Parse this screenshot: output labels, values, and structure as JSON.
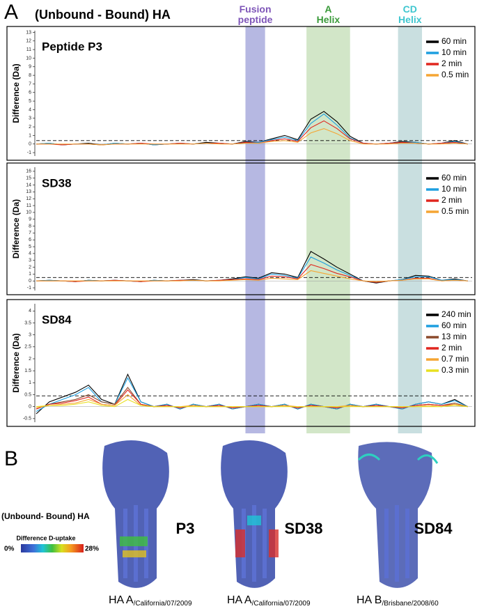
{
  "panel_a": {
    "label": "A",
    "title": "(Unbound - Bound) HA"
  },
  "regions": [
    {
      "label": "Fusion peptide",
      "start": 48,
      "end": 52.5,
      "color": "#b6b8e2",
      "text_color": "#7e55b8"
    },
    {
      "label": "A Helix",
      "start": 62,
      "end": 72,
      "color": "#d2e6c8",
      "text_color": "#3a9a3a"
    },
    {
      "label": "CD Helix",
      "start": 83,
      "end": 88.5,
      "color": "#c9dfe0",
      "text_color": "#3ec6cf"
    }
  ],
  "chart_data": [
    {
      "type": "line",
      "title": "Peptide P3",
      "y_label": "Difference (Da)",
      "x": [
        0,
        3,
        6,
        9,
        12,
        15,
        18,
        21,
        24,
        27,
        30,
        33,
        36,
        39,
        42,
        45,
        48,
        51,
        54,
        57,
        60,
        63,
        66,
        69,
        72,
        75,
        78,
        81,
        84,
        87,
        90,
        93,
        96,
        99
      ],
      "xlim": [
        0,
        100
      ],
      "ylim": [
        -1.4,
        13.2
      ],
      "yticks": [
        -1,
        0,
        1,
        2,
        3,
        4,
        5,
        6,
        7,
        8,
        9,
        10,
        11,
        12,
        13
      ],
      "threshold": 0.4,
      "series": [
        {
          "name": "60 min",
          "color": "#000000",
          "values": [
            0,
            0.1,
            -0.1,
            0,
            0.1,
            -0.1,
            0.1,
            0,
            0.1,
            -0.1,
            0,
            0.1,
            0,
            0.2,
            0.1,
            0,
            0.3,
            0.2,
            0.6,
            1.0,
            0.5,
            2.9,
            3.8,
            2.6,
            0.9,
            0.1,
            0,
            0.1,
            0.3,
            0.2,
            0,
            0.1,
            0.4,
            0
          ]
        },
        {
          "name": "10 min",
          "color": "#1d9fe0",
          "values": [
            0,
            0.1,
            -0.1,
            0,
            0,
            -0.1,
            0.1,
            0,
            0.1,
            -0.1,
            0,
            0.1,
            0,
            0.1,
            0.1,
            0,
            0.2,
            0.2,
            0.5,
            0.8,
            0.4,
            2.4,
            3.5,
            2.2,
            0.7,
            0.1,
            0,
            0.1,
            0.2,
            0.2,
            0,
            0.1,
            0.3,
            0
          ]
        },
        {
          "name": "2 min",
          "color": "#e0261f",
          "values": [
            0,
            0,
            -0.1,
            0,
            0,
            -0.1,
            0,
            0,
            0.1,
            0,
            0,
            0.1,
            0,
            0.1,
            0.1,
            0,
            0.2,
            0.1,
            0.4,
            0.6,
            0.3,
            1.9,
            2.7,
            1.8,
            0.6,
            0.1,
            0,
            0.1,
            0.2,
            0.1,
            0,
            0.1,
            0.2,
            0
          ]
        },
        {
          "name": "0.5 min",
          "color": "#f5a533",
          "values": [
            0,
            0,
            0,
            0,
            0,
            -0.1,
            0,
            0,
            0,
            0,
            0,
            0,
            0,
            0.1,
            0,
            0,
            0.1,
            0.1,
            0.3,
            0.4,
            0.2,
            1.3,
            1.8,
            1.2,
            0.4,
            0,
            0,
            0,
            0.1,
            0.1,
            0,
            0,
            0.1,
            0
          ]
        }
      ]
    },
    {
      "type": "line",
      "title": "SD38",
      "y_label": "Difference (Da)",
      "x": [
        0,
        3,
        6,
        9,
        12,
        15,
        18,
        21,
        24,
        27,
        30,
        33,
        36,
        39,
        42,
        45,
        48,
        51,
        54,
        57,
        60,
        63,
        66,
        69,
        72,
        75,
        78,
        81,
        84,
        87,
        90,
        93,
        96,
        99
      ],
      "xlim": [
        0,
        100
      ],
      "ylim": [
        -1.4,
        16.6
      ],
      "yticks": [
        -1,
        0,
        1,
        2,
        3,
        4,
        5,
        6,
        7,
        8,
        9,
        10,
        11,
        12,
        13,
        14,
        15,
        16
      ],
      "threshold": 0.5,
      "series": [
        {
          "name": "60 min",
          "color": "#000000",
          "values": [
            0,
            0.1,
            0,
            -0.1,
            0.1,
            0,
            0.1,
            0,
            -0.1,
            0.1,
            0,
            0.1,
            0.2,
            0,
            0.1,
            0.3,
            0.6,
            0.4,
            1.2,
            1.0,
            0.5,
            4.3,
            3.2,
            2.0,
            1.0,
            0,
            -0.3,
            0,
            0.2,
            0.8,
            0.7,
            0.1,
            0.3,
            0
          ]
        },
        {
          "name": "10 min",
          "color": "#1d9fe0",
          "values": [
            0,
            0.1,
            0,
            -0.1,
            0.1,
            0,
            0.1,
            0,
            -0.1,
            0.1,
            0,
            0.1,
            0.1,
            0,
            0.1,
            0.2,
            0.5,
            0.3,
            1.0,
            0.8,
            0.4,
            3.5,
            2.6,
            1.6,
            0.8,
            0,
            -0.2,
            0,
            0.2,
            0.6,
            0.6,
            0.1,
            0.2,
            0
          ]
        },
        {
          "name": "2 min",
          "color": "#e0261f",
          "values": [
            0,
            0,
            0,
            -0.1,
            0,
            0,
            0.1,
            0,
            -0.1,
            0,
            0,
            0.1,
            0.1,
            0,
            0.1,
            0.2,
            0.3,
            0.2,
            0.7,
            0.6,
            0.3,
            2.4,
            1.8,
            1.1,
            0.6,
            0,
            -0.2,
            0,
            0.1,
            0.4,
            0.4,
            0,
            0.1,
            0
          ]
        },
        {
          "name": "0.5 min",
          "color": "#f5a533",
          "values": [
            0,
            0,
            0,
            0,
            0,
            0,
            0,
            0,
            0,
            0,
            0,
            0,
            0.1,
            0,
            0,
            0.1,
            0.2,
            0.1,
            0.4,
            0.3,
            0.2,
            1.5,
            1.1,
            0.7,
            0.3,
            0,
            -0.1,
            0,
            0.1,
            0.3,
            0.3,
            0,
            0.1,
            0
          ]
        }
      ]
    },
    {
      "type": "line",
      "title": "SD84",
      "y_label": "Difference (Da)",
      "x": [
        0,
        3,
        6,
        9,
        12,
        15,
        18,
        21,
        24,
        27,
        30,
        33,
        36,
        39,
        42,
        45,
        48,
        51,
        54,
        57,
        60,
        63,
        66,
        69,
        72,
        75,
        78,
        81,
        84,
        87,
        90,
        93,
        96,
        99
      ],
      "xlim": [
        0,
        100
      ],
      "ylim": [
        -0.65,
        4.3
      ],
      "yticks": [
        -0.5,
        0,
        0.5,
        1,
        1.5,
        2,
        2.5,
        3,
        3.5,
        4
      ],
      "threshold": 0.45,
      "series": [
        {
          "name": "240 min",
          "color": "#000000",
          "values": [
            -0.3,
            0.2,
            0.4,
            0.6,
            0.9,
            0.3,
            0.1,
            1.35,
            0.2,
            0,
            0.1,
            -0.1,
            0.1,
            0,
            0.1,
            -0.1,
            0,
            0.1,
            0,
            0.1,
            -0.1,
            0.1,
            0,
            -0.1,
            0.1,
            0,
            0.1,
            0,
            -0.1,
            0.1,
            0.2,
            0.1,
            0.3,
            0
          ]
        },
        {
          "name": "60 min",
          "color": "#1d9fe0",
          "values": [
            -0.2,
            0.1,
            0.3,
            0.5,
            0.8,
            0.2,
            0.1,
            1.2,
            0.2,
            0,
            0.1,
            -0.1,
            0.1,
            0,
            0.1,
            -0.1,
            0,
            0.1,
            0,
            0.1,
            -0.1,
            0.1,
            0,
            -0.1,
            0.1,
            0,
            0.1,
            0,
            -0.1,
            0.1,
            0.2,
            0.1,
            0.25,
            0
          ]
        },
        {
          "name": "13 min",
          "color": "#8b4a2b",
          "values": [
            -0.1,
            0.1,
            0.2,
            0.3,
            0.5,
            0.2,
            0.1,
            0.8,
            0.1,
            0,
            0.05,
            -0.05,
            0.05,
            0,
            0.05,
            -0.05,
            0,
            0.05,
            0,
            0.05,
            -0.05,
            0.05,
            0,
            -0.05,
            0.05,
            0,
            0.05,
            0,
            -0.05,
            0.05,
            0.1,
            0.05,
            0.15,
            0
          ]
        },
        {
          "name": "2 min",
          "color": "#e0261f",
          "values": [
            -0.1,
            0.1,
            0.15,
            0.25,
            0.4,
            0.1,
            0.05,
            0.7,
            0.1,
            0,
            0.05,
            -0.05,
            0.05,
            0,
            0.05,
            -0.05,
            0,
            0.05,
            0,
            0.05,
            -0.05,
            0.05,
            0,
            -0.05,
            0.05,
            0,
            0.05,
            0,
            -0.05,
            0.05,
            0.1,
            0.05,
            0.1,
            0
          ]
        },
        {
          "name": "0.7 min",
          "color": "#f5a533",
          "values": [
            -0.05,
            0.05,
            0.1,
            0.15,
            0.3,
            0.1,
            0.05,
            0.5,
            0.05,
            0,
            0,
            0,
            0.05,
            0,
            0,
            0,
            0,
            0,
            0,
            0.05,
            0,
            0,
            0,
            0,
            0.05,
            0,
            0,
            0,
            0,
            0,
            0.05,
            0,
            0.1,
            0
          ]
        },
        {
          "name": "0.3 min",
          "color": "#e8e020",
          "values": [
            0,
            0.05,
            0.05,
            0.1,
            0.2,
            0.05,
            0,
            0.3,
            0.05,
            0,
            0,
            0,
            0,
            0,
            0,
            0,
            0,
            0,
            0,
            0,
            0,
            0,
            0,
            0,
            0,
            0,
            0,
            0,
            0,
            0,
            0,
            0,
            0.05,
            0
          ]
        }
      ]
    }
  ],
  "panel_b": {
    "label": "B",
    "legend_title": "(Unbound- Bound) HA",
    "scale_title": "Difference D-uptake",
    "scale_min": "0%",
    "scale_max": "28%",
    "structures": [
      {
        "name": "P3",
        "strain": "HA A",
        "subscript": "/California/07/2009"
      },
      {
        "name": "SD38",
        "strain": "HA A",
        "subscript": "/California/07/2009"
      },
      {
        "name": "SD84",
        "strain": "HA B",
        "subscript": "/Brisbane/2008/60"
      }
    ]
  }
}
